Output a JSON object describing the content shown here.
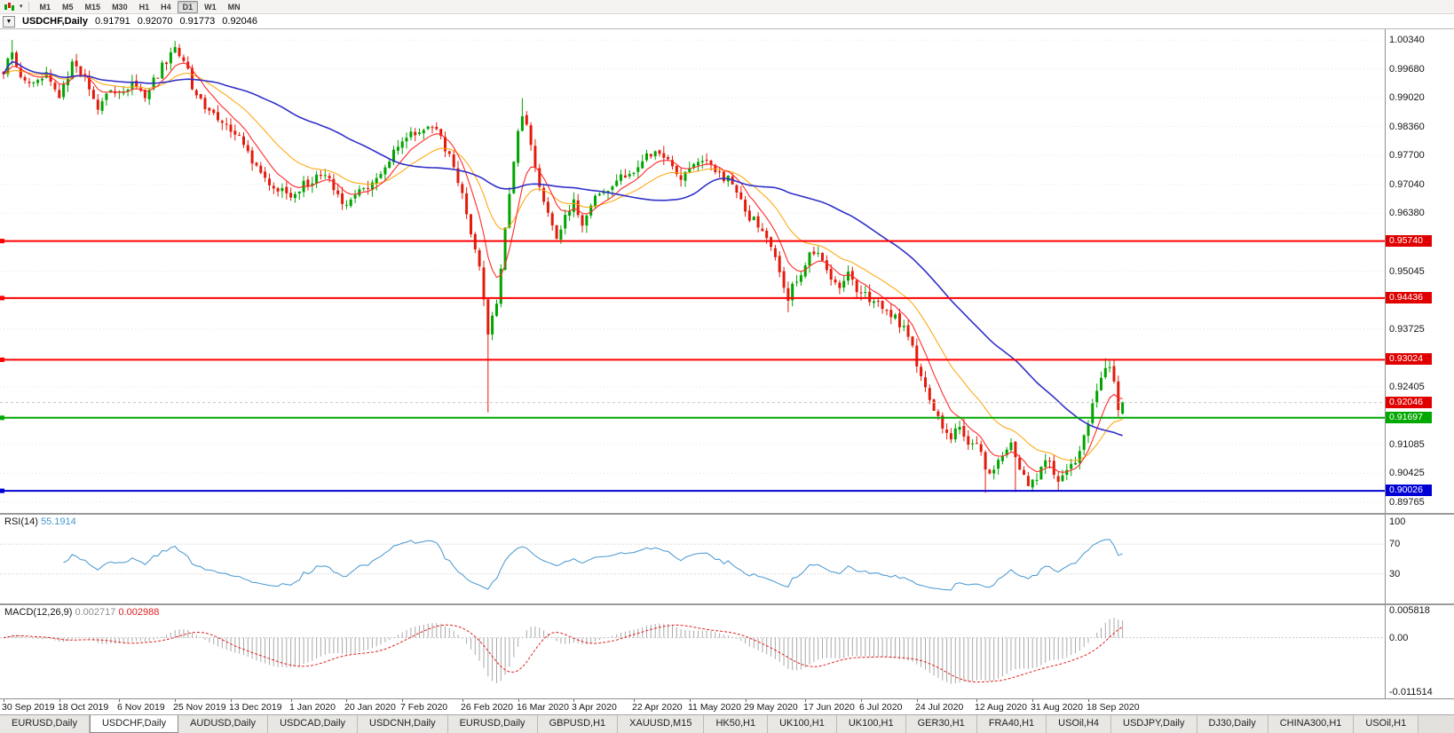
{
  "colors": {
    "bull": "#00a400",
    "bear": "#e31b0c",
    "ma_fast": "#ff2a2a",
    "ma_mid": "#ffa200",
    "ma_slow": "#3030c8",
    "rsi": "#4596d1",
    "macd_hist": "#a9a9a9",
    "macd_signal": "#e02020",
    "grid": "#e7e7e7",
    "current_line": "#c6c6c6"
  },
  "toolbar": {
    "timeframes": [
      "M1",
      "M5",
      "M15",
      "M30",
      "H1",
      "H4",
      "D1",
      "W1",
      "MN"
    ],
    "active_timeframe": "D1"
  },
  "chart_title": {
    "symbol_period": "USDCHF,Daily",
    "open": "0.91791",
    "high": "0.92070",
    "low": "0.91773",
    "close": "0.92046"
  },
  "price_axis": {
    "labels": [
      {
        "text": "1.00340",
        "value": 1.0034
      },
      {
        "text": "0.99680",
        "value": 0.9968
      },
      {
        "text": "0.99020",
        "value": 0.9902
      },
      {
        "text": "0.98360",
        "value": 0.9836
      },
      {
        "text": "0.97700",
        "value": 0.977
      },
      {
        "text": "0.97040",
        "value": 0.9704
      },
      {
        "text": "0.96380",
        "value": 0.9638
      },
      {
        "text": "0.95045",
        "value": 0.95045
      },
      {
        "text": "0.93725",
        "value": 0.93725
      },
      {
        "text": "0.92405",
        "value": 0.92405
      },
      {
        "text": "0.91085",
        "value": 0.91085
      },
      {
        "text": "0.90425",
        "value": 0.90425
      },
      {
        "text": "0.89765",
        "value": 0.89765
      }
    ],
    "badges": [
      {
        "text": "0.95740",
        "value": 0.9574,
        "color": "#e00000",
        "name": "resistance-1"
      },
      {
        "text": "0.94436",
        "value": 0.94436,
        "color": "#e00000",
        "name": "resistance-2"
      },
      {
        "text": "0.93024",
        "value": 0.93024,
        "color": "#e00000",
        "name": "resistance-3"
      },
      {
        "text": "0.92046",
        "value": 0.92046,
        "color": "#e00000",
        "name": "current-price"
      },
      {
        "text": "0.91697",
        "value": 0.91697,
        "color": "#00a800",
        "name": "support-green"
      },
      {
        "text": "0.90026",
        "value": 0.90026,
        "color": "#0000d6",
        "name": "support-blue"
      }
    ]
  },
  "rsi_panel": {
    "label": "RSI(14)",
    "value": "55.1914",
    "levels": [
      {
        "text": "100",
        "value": 100
      },
      {
        "text": "70",
        "value": 70
      },
      {
        "text": "30",
        "value": 30
      }
    ],
    "level_lines": [
      70,
      30
    ]
  },
  "macd_panel": {
    "label": "MACD(12,26,9)",
    "value_main": "0.002717",
    "value_signal": "0.002988",
    "axis": [
      {
        "text": "0.005818",
        "value": 0.005818
      },
      {
        "text": "0.00",
        "value": 0
      },
      {
        "text": "-0.011514",
        "value": -0.011514
      }
    ]
  },
  "date_axis": [
    {
      "text": "30 Sep 2019",
      "day": 0
    },
    {
      "text": "18 Oct 2019",
      "day": 13
    },
    {
      "text": "6 Nov 2019",
      "day": 27
    },
    {
      "text": "25 Nov 2019",
      "day": 40
    },
    {
      "text": "13 Dec 2019",
      "day": 53
    },
    {
      "text": "1 Jan 2020",
      "day": 67
    },
    {
      "text": "20 Jan 2020",
      "day": 80
    },
    {
      "text": "7 Feb 2020",
      "day": 93
    },
    {
      "text": "26 Feb 2020",
      "day": 107
    },
    {
      "text": "16 Mar 2020",
      "day": 120
    },
    {
      "text": "3 Apr 2020",
      "day": 133
    },
    {
      "text": "22 Apr 2020",
      "day": 147
    },
    {
      "text": "11 May 2020",
      "day": 160
    },
    {
      "text": "29 May 2020",
      "day": 173
    },
    {
      "text": "17 Jun 2020",
      "day": 187
    },
    {
      "text": "6 Jul 2020",
      "day": 200
    },
    {
      "text": "24 Jul 2020",
      "day": 213
    },
    {
      "text": "12 Aug 2020",
      "day": 227
    },
    {
      "text": "31 Aug 2020",
      "day": 240
    },
    {
      "text": "18 Sep 2020",
      "day": 253
    }
  ],
  "tabs": {
    "items": [
      "EURUSD,Daily",
      "USDCHF,Daily",
      "AUDUSD,Daily",
      "USDCAD,Daily",
      "USDCNH,Daily",
      "EURUSD,Daily",
      "GBPUSD,H1",
      "XAUUSD,M15",
      "HK50,H1",
      "UK100,H1",
      "UK100,H1",
      "GER30,H1",
      "FRA40,H1",
      "USOil,H4",
      "USDJPY,Daily",
      "DJ30,Daily",
      "CHINA300,H1",
      "USOil,H1"
    ],
    "active_index": 1
  },
  "chart_data": {
    "type": "candlestick",
    "symbol": "USDCHF",
    "period": "Daily",
    "days": 262,
    "ohlc_current": {
      "open": 0.91791,
      "high": 0.9207,
      "low": 0.91773,
      "close": 0.92046
    },
    "price_range": {
      "max": 1.00585,
      "min": 0.8952
    },
    "price_anchors": [
      [
        0,
        0.9962
      ],
      [
        2,
        1.0005
      ],
      [
        4,
        0.9948
      ],
      [
        7,
        0.9936
      ],
      [
        10,
        0.9962
      ],
      [
        13,
        0.9906
      ],
      [
        16,
        0.9974
      ],
      [
        19,
        0.9942
      ],
      [
        22,
        0.9876
      ],
      [
        25,
        0.9922
      ],
      [
        27,
        0.9906
      ],
      [
        30,
        0.9944
      ],
      [
        33,
        0.9902
      ],
      [
        36,
        0.9956
      ],
      [
        38,
        0.999
      ],
      [
        40,
        1.0012
      ],
      [
        42,
        0.9986
      ],
      [
        44,
        0.9932
      ],
      [
        46,
        0.9894
      ],
      [
        48,
        0.9868
      ],
      [
        50,
        0.9854
      ],
      [
        53,
        0.9832
      ],
      [
        56,
        0.9792
      ],
      [
        59,
        0.9746
      ],
      [
        62,
        0.9708
      ],
      [
        65,
        0.9686
      ],
      [
        67,
        0.9682
      ],
      [
        70,
        0.9702
      ],
      [
        73,
        0.9722
      ],
      [
        76,
        0.9712
      ],
      [
        78,
        0.9682
      ],
      [
        80,
        0.9654
      ],
      [
        82,
        0.968
      ],
      [
        85,
        0.9702
      ],
      [
        88,
        0.9732
      ],
      [
        91,
        0.9776
      ],
      [
        93,
        0.98
      ],
      [
        96,
        0.9822
      ],
      [
        99,
        0.9844
      ],
      [
        101,
        0.9828
      ],
      [
        103,
        0.979
      ],
      [
        105,
        0.974
      ],
      [
        107,
        0.9674
      ],
      [
        109,
        0.96
      ],
      [
        111,
        0.951
      ],
      [
        112,
        0.944
      ],
      [
        113,
        0.935
      ],
      [
        115,
        0.944
      ],
      [
        117,
        0.96
      ],
      [
        119,
        0.976
      ],
      [
        120,
        0.983
      ],
      [
        121,
        0.987
      ],
      [
        123,
        0.979
      ],
      [
        125,
        0.97
      ],
      [
        127,
        0.963
      ],
      [
        129,
        0.959
      ],
      [
        131,
        0.963
      ],
      [
        133,
        0.966
      ],
      [
        135,
        0.962
      ],
      [
        137,
        0.966
      ],
      [
        140,
        0.969
      ],
      [
        143,
        0.971
      ],
      [
        146,
        0.973
      ],
      [
        149,
        0.976
      ],
      [
        152,
        0.978
      ],
      [
        155,
        0.9752
      ],
      [
        158,
        0.9722
      ],
      [
        161,
        0.9742
      ],
      [
        164,
        0.9754
      ],
      [
        167,
        0.9724
      ],
      [
        170,
        0.9712
      ],
      [
        173,
        0.9642
      ],
      [
        176,
        0.961
      ],
      [
        179,
        0.9556
      ],
      [
        181,
        0.9506
      ],
      [
        183,
        0.9446
      ],
      [
        185,
        0.9486
      ],
      [
        187,
        0.9524
      ],
      [
        189,
        0.9552
      ],
      [
        192,
        0.9506
      ],
      [
        195,
        0.9476
      ],
      [
        197,
        0.9504
      ],
      [
        199,
        0.9466
      ],
      [
        202,
        0.9442
      ],
      [
        205,
        0.942
      ],
      [
        208,
        0.94
      ],
      [
        211,
        0.9356
      ],
      [
        213,
        0.9296
      ],
      [
        215,
        0.924
      ],
      [
        217,
        0.919
      ],
      [
        219,
        0.9152
      ],
      [
        221,
        0.9122
      ],
      [
        223,
        0.9152
      ],
      [
        225,
        0.9108
      ],
      [
        227,
        0.9118
      ],
      [
        229,
        0.9062
      ],
      [
        231,
        0.9042
      ],
      [
        233,
        0.9092
      ],
      [
        235,
        0.9112
      ],
      [
        237,
        0.9062
      ],
      [
        239,
        0.9022
      ],
      [
        241,
        0.9036
      ],
      [
        243,
        0.9082
      ],
      [
        245,
        0.905
      ],
      [
        246,
        0.9014
      ],
      [
        248,
        0.9056
      ],
      [
        250,
        0.9076
      ],
      [
        252,
        0.9124
      ],
      [
        253,
        0.9164
      ],
      [
        255,
        0.924
      ],
      [
        257,
        0.9292
      ],
      [
        258,
        0.9296
      ],
      [
        259,
        0.9252
      ],
      [
        260,
        0.918
      ],
      [
        261,
        0.92046
      ]
    ],
    "wick_events": [
      {
        "day": 2,
        "high": 1.0034
      },
      {
        "day": 113,
        "low": 0.9182
      },
      {
        "day": 121,
        "high": 0.9901
      },
      {
        "day": 183,
        "low": 0.9411
      },
      {
        "day": 229,
        "low": 0.8998
      },
      {
        "day": 236,
        "low": 0.9
      },
      {
        "day": 246,
        "low": 0.9003
      },
      {
        "day": 257,
        "high": 0.9306
      }
    ],
    "hlines": [
      {
        "value": 0.9574,
        "color": "#ff0000",
        "width": 2
      },
      {
        "value": 0.94436,
        "color": "#ff0000",
        "width": 2
      },
      {
        "value": 0.93024,
        "color": "#ff0000",
        "width": 2
      },
      {
        "value": 0.91697,
        "color": "#00a800",
        "width": 2
      },
      {
        "value": 0.90026,
        "color": "#0000d6",
        "width": 2
      }
    ],
    "current_price_line": {
      "value": 0.92046
    },
    "indicators": {
      "ma": [
        {
          "type": "ema",
          "period": 8,
          "color_key": "ma_fast"
        },
        {
          "type": "ema",
          "period": 21,
          "color_key": "ma_mid"
        },
        {
          "type": "sma",
          "period": 50,
          "color_key": "ma_slow"
        }
      ],
      "rsi": {
        "period": 14,
        "current": 55.1914
      },
      "macd": {
        "fast": 12,
        "slow": 26,
        "signal": 9,
        "current_main": 0.002717,
        "current_signal": 0.002988,
        "range_max": 0.005818,
        "range_min": -0.011514
      }
    }
  }
}
